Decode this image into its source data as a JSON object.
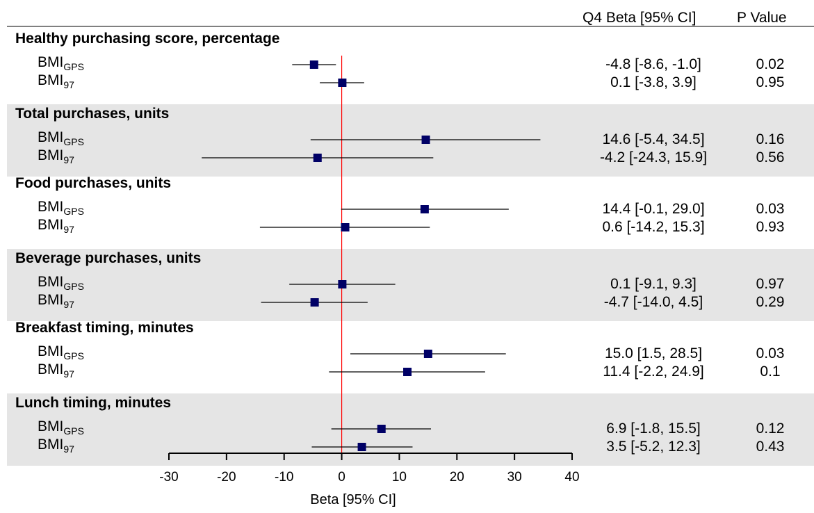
{
  "chart_data": {
    "type": "forest",
    "header_beta": "Q4 Beta [95% CI]",
    "header_p": "P Value",
    "xlabel": "Beta [95% CI]",
    "xlim": [
      -30,
      40
    ],
    "xticks": [
      "-30",
      "-20",
      "-10",
      "0",
      "10",
      "20",
      "30",
      "40"
    ],
    "reference_line": 0,
    "groups": [
      {
        "title": "Healthy purchasing score, percentage",
        "shaded": false,
        "rows": [
          {
            "label_main": "BMI",
            "label_sub": "GPS",
            "beta": -4.8,
            "lo": -8.6,
            "hi": -1.0,
            "beta_text": "-4.8 [-8.6, -1.0]",
            "p": "0.02"
          },
          {
            "label_main": "BMI",
            "label_sub": "97",
            "beta": 0.1,
            "lo": -3.8,
            "hi": 3.9,
            "beta_text": "0.1 [-3.8, 3.9]",
            "p": "0.95"
          }
        ]
      },
      {
        "title": "Total purchases, units",
        "shaded": true,
        "rows": [
          {
            "label_main": "BMI",
            "label_sub": "GPS",
            "beta": 14.6,
            "lo": -5.4,
            "hi": 34.5,
            "beta_text": "14.6 [-5.4, 34.5]",
            "p": "0.16"
          },
          {
            "label_main": "BMI",
            "label_sub": "97",
            "beta": -4.2,
            "lo": -24.3,
            "hi": 15.9,
            "beta_text": "-4.2 [-24.3, 15.9]",
            "p": "0.56"
          }
        ]
      },
      {
        "title": "Food purchases, units",
        "shaded": false,
        "rows": [
          {
            "label_main": "BMI",
            "label_sub": "GPS",
            "beta": 14.4,
            "lo": -0.1,
            "hi": 29.0,
            "beta_text": "14.4 [-0.1, 29.0]",
            "p": "0.03"
          },
          {
            "label_main": "BMI",
            "label_sub": "97",
            "beta": 0.6,
            "lo": -14.2,
            "hi": 15.3,
            "beta_text": "0.6 [-14.2, 15.3]",
            "p": "0.93"
          }
        ]
      },
      {
        "title": "Beverage purchases, units",
        "shaded": true,
        "rows": [
          {
            "label_main": "BMI",
            "label_sub": "GPS",
            "beta": 0.1,
            "lo": -9.1,
            "hi": 9.3,
            "beta_text": "0.1 [-9.1, 9.3]",
            "p": "0.97"
          },
          {
            "label_main": "BMI",
            "label_sub": "97",
            "beta": -4.7,
            "lo": -14.0,
            "hi": 4.5,
            "beta_text": "-4.7 [-14.0, 4.5]",
            "p": "0.29"
          }
        ]
      },
      {
        "title": "Breakfast timing, minutes",
        "shaded": false,
        "rows": [
          {
            "label_main": "BMI",
            "label_sub": "GPS",
            "beta": 15.0,
            "lo": 1.5,
            "hi": 28.5,
            "beta_text": "15.0 [1.5, 28.5]",
            "p": "0.03"
          },
          {
            "label_main": "BMI",
            "label_sub": "97",
            "beta": 11.4,
            "lo": -2.2,
            "hi": 24.9,
            "beta_text": "11.4 [-2.2, 24.9]",
            "p": "0.1"
          }
        ]
      },
      {
        "title": "Lunch timing, minutes",
        "shaded": true,
        "rows": [
          {
            "label_main": "BMI",
            "label_sub": "GPS",
            "beta": 6.9,
            "lo": -1.8,
            "hi": 15.5,
            "beta_text": "6.9 [-1.8, 15.5]",
            "p": "0.12"
          },
          {
            "label_main": "BMI",
            "label_sub": "97",
            "beta": 3.5,
            "lo": -5.2,
            "hi": 12.3,
            "beta_text": "3.5 [-5.2, 12.3]",
            "p": "0.43"
          }
        ]
      }
    ],
    "colors": {
      "point": "#000066",
      "reference_line": "#ff0000",
      "shade": "#e5e5e5",
      "ci_line": "#000000"
    }
  }
}
